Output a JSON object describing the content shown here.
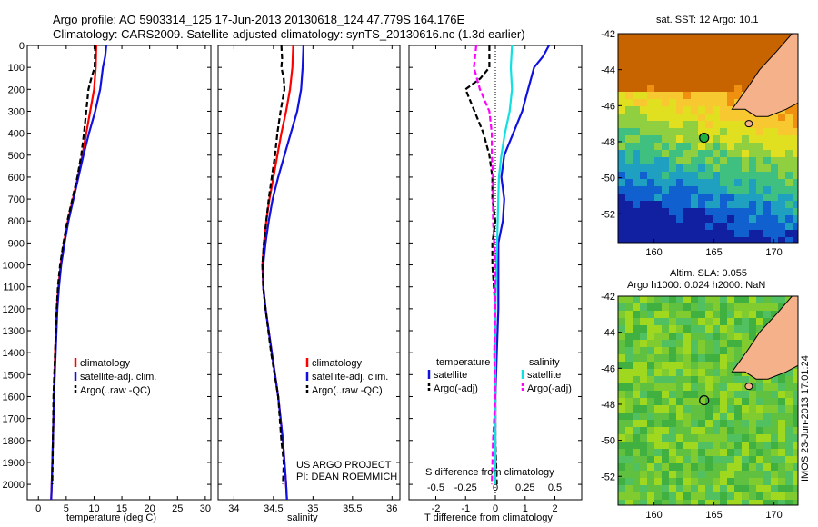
{
  "header": {
    "line1": "Argo profile: AO 5903314_125 17-Jun-2013 20130618_124 47.779S 164.176E",
    "line2": "Climatology: CARS2009. Satellite-adjusted climatology: synTS_20130616.nc (1.3d earlier)"
  },
  "project": {
    "line1": "US ARGO PROJECT",
    "line2": "PI: DEAN ROEMMICH"
  },
  "colors": {
    "climatology": "#ff0000",
    "satellite": "#1010e0",
    "argo": "#000000",
    "sal_satellite": "#10e0e0",
    "sal_argo": "#ff00ff",
    "land": "#f5b28a"
  },
  "chart_data": [
    {
      "type": "line",
      "xlabel": "temperature (deg C)",
      "ylabel": "",
      "xlim": [
        -2,
        31
      ],
      "ylim": [
        2070,
        0
      ],
      "xticks": [
        0,
        5,
        10,
        15,
        20,
        25,
        30
      ],
      "yticks": [
        0,
        100,
        200,
        300,
        400,
        500,
        600,
        700,
        800,
        900,
        1000,
        1100,
        1200,
        1300,
        1400,
        1500,
        1600,
        1700,
        1800,
        1900,
        2000
      ],
      "legend": [
        "climatology",
        "satellite-adj. clim.",
        "Argo(..raw -QC)"
      ],
      "series": [
        {
          "name": "climatology",
          "depth": [
            0,
            100,
            200,
            300,
            400,
            500,
            600,
            700,
            800,
            900,
            1000,
            1100,
            1200,
            1400,
            1600,
            1800,
            2000,
            2070
          ],
          "values": [
            10.4,
            10.3,
            10.0,
            9.3,
            8.6,
            7.9,
            7.1,
            6.2,
            5.3,
            4.6,
            4.0,
            3.6,
            3.3,
            3.0,
            2.8,
            2.6,
            2.4,
            2.3
          ]
        },
        {
          "name": "satellite-adj. clim.",
          "depth": [
            0,
            50,
            100,
            200,
            300,
            400,
            500,
            600,
            700,
            800,
            900,
            1000,
            1100,
            1200,
            1400,
            1600,
            1800,
            2000,
            2070
          ],
          "values": [
            12.2,
            12.0,
            11.6,
            11.1,
            10.2,
            9.1,
            8.1,
            7.2,
            6.3,
            5.4,
            4.7,
            4.1,
            3.7,
            3.4,
            3.1,
            2.8,
            2.6,
            2.4,
            2.3
          ]
        },
        {
          "name": "Argo(..raw -QC)",
          "depth": [
            0,
            100,
            150,
            200,
            300,
            400,
            500,
            600,
            700,
            800,
            900,
            1000,
            1100,
            1200,
            1400,
            1600,
            1800,
            2000
          ],
          "values": [
            10.2,
            10.1,
            9.5,
            9.0,
            8.6,
            8.2,
            7.7,
            7.0,
            6.1,
            5.2,
            4.5,
            3.9,
            3.5,
            3.3,
            3.0,
            2.7,
            2.6,
            2.5
          ]
        }
      ]
    },
    {
      "type": "line",
      "xlabel": "salinity",
      "ylabel": "",
      "xlim": [
        33.8,
        36.1
      ],
      "ylim": [
        2070,
        0
      ],
      "xticks": [
        34,
        34.5,
        35,
        35.5,
        36
      ],
      "legend": [
        "climatology",
        "satellite-adj. clim.",
        "Argo(..raw -QC)"
      ],
      "series": [
        {
          "name": "climatology",
          "depth": [
            0,
            100,
            200,
            300,
            400,
            500,
            600,
            700,
            800,
            900,
            1000,
            1100,
            1200,
            1400,
            1600,
            1800,
            2000,
            2070
          ],
          "values": [
            34.75,
            34.74,
            34.71,
            34.66,
            34.6,
            34.55,
            34.5,
            34.45,
            34.41,
            34.38,
            34.36,
            34.37,
            34.4,
            34.48,
            34.56,
            34.62,
            34.66,
            34.67
          ]
        },
        {
          "name": "satellite-adj. clim.",
          "depth": [
            0,
            100,
            200,
            300,
            400,
            500,
            600,
            700,
            800,
            900,
            1000,
            1100,
            1200,
            1400,
            1600,
            1800,
            2000,
            2070
          ],
          "values": [
            34.88,
            34.87,
            34.85,
            34.8,
            34.72,
            34.64,
            34.56,
            34.49,
            34.44,
            34.4,
            34.37,
            34.37,
            34.4,
            34.48,
            34.56,
            34.62,
            34.66,
            34.67
          ]
        },
        {
          "name": "Argo(..raw -QC)",
          "depth": [
            0,
            60,
            100,
            150,
            200,
            300,
            400,
            500,
            600,
            700,
            800,
            900,
            1000,
            1100,
            1200,
            1400,
            1600,
            1800,
            1900,
            2000
          ],
          "values": [
            34.6,
            34.61,
            34.6,
            34.63,
            34.64,
            34.59,
            34.55,
            34.52,
            34.48,
            34.44,
            34.41,
            34.38,
            34.36,
            34.37,
            34.4,
            34.47,
            34.56,
            34.6,
            34.63,
            34.62
          ]
        }
      ]
    },
    {
      "type": "line",
      "xlabel": "T difference from climatology",
      "xlabel2": "S difference from climatology",
      "xlim": [
        -2.9,
        2.9
      ],
      "ylim": [
        2070,
        0
      ],
      "xticks": [
        -2,
        -1,
        0,
        1,
        2
      ],
      "xticks2": [
        "-0.5",
        "-0.25",
        "0",
        "0.25",
        "0.5"
      ],
      "legend_titles": [
        "temperature",
        "salinity"
      ],
      "legend": [
        "satellite",
        "Argo(-adj)",
        "satellite",
        "Argo(-adj)"
      ],
      "series": [
        {
          "name": "temperature satellite",
          "depth": [
            0,
            50,
            100,
            200,
            300,
            400,
            500,
            600,
            700,
            800,
            900,
            1000,
            1200,
            1400,
            1600,
            1800,
            2000
          ],
          "values": [
            1.8,
            1.6,
            1.3,
            1.1,
            0.9,
            0.6,
            0.3,
            0.2,
            0.3,
            0.25,
            0.1,
            0.1,
            0.1,
            0.05,
            0.0,
            0.0,
            0.0
          ]
        },
        {
          "name": "temperature Argo(-adj)",
          "depth": [
            0,
            100,
            150,
            200,
            300,
            400,
            500,
            600,
            700,
            800,
            900,
            1000,
            1200,
            1400,
            1600,
            1800,
            2000
          ],
          "values": [
            -0.2,
            -0.2,
            -0.5,
            -1.0,
            -0.7,
            -0.4,
            -0.2,
            -0.1,
            -0.1,
            0.0,
            -0.1,
            -0.1,
            0.0,
            0.0,
            0.0,
            0.0,
            0.05
          ]
        },
        {
          "name": "salinity satellite",
          "depth": [
            0,
            100,
            200,
            300,
            400,
            500,
            600,
            800,
            1000,
            1200,
            1400,
            1600,
            1800,
            2000
          ],
          "values": [
            0.14,
            0.13,
            0.14,
            0.12,
            0.08,
            0.05,
            0.03,
            0.02,
            0.01,
            0.0,
            0.0,
            0.0,
            0.0,
            0.0
          ]
        },
        {
          "name": "salinity Argo(-adj)",
          "depth": [
            0,
            50,
            100,
            200,
            300,
            400,
            500,
            600,
            800,
            1000,
            1200,
            1400,
            1600,
            1800,
            2000
          ],
          "values": [
            -0.16,
            -0.17,
            -0.18,
            -0.13,
            -0.05,
            -0.03,
            -0.03,
            -0.02,
            -0.02,
            0.0,
            0.0,
            -0.01,
            0.0,
            -0.02,
            -0.03
          ]
        }
      ]
    },
    {
      "type": "heatmap",
      "title": "sat. SST: 12 Argo: 10.1",
      "xlim": [
        157,
        172
      ],
      "ylim": [
        -53.6,
        -42
      ],
      "xticks": [
        160,
        165,
        170
      ],
      "yticks": [
        -42,
        -44,
        -46,
        -48,
        -50,
        -52
      ],
      "argo_marker": {
        "lon": 164.176,
        "lat": -47.779
      }
    },
    {
      "type": "heatmap",
      "title": "Altim. SLA: 0.055",
      "subtitle": "Argo h1000: 0.024 h2000: NaN",
      "xlim": [
        157,
        172
      ],
      "ylim": [
        -53.6,
        -42
      ],
      "xticks": [
        160,
        165,
        170
      ],
      "yticks": [
        -42,
        -44,
        -46,
        -48,
        -50,
        -52
      ],
      "argo_marker": {
        "lon": 164.176,
        "lat": -47.779
      }
    }
  ],
  "timestamp": "IMOS 23-Jun-2013 17:01:24"
}
